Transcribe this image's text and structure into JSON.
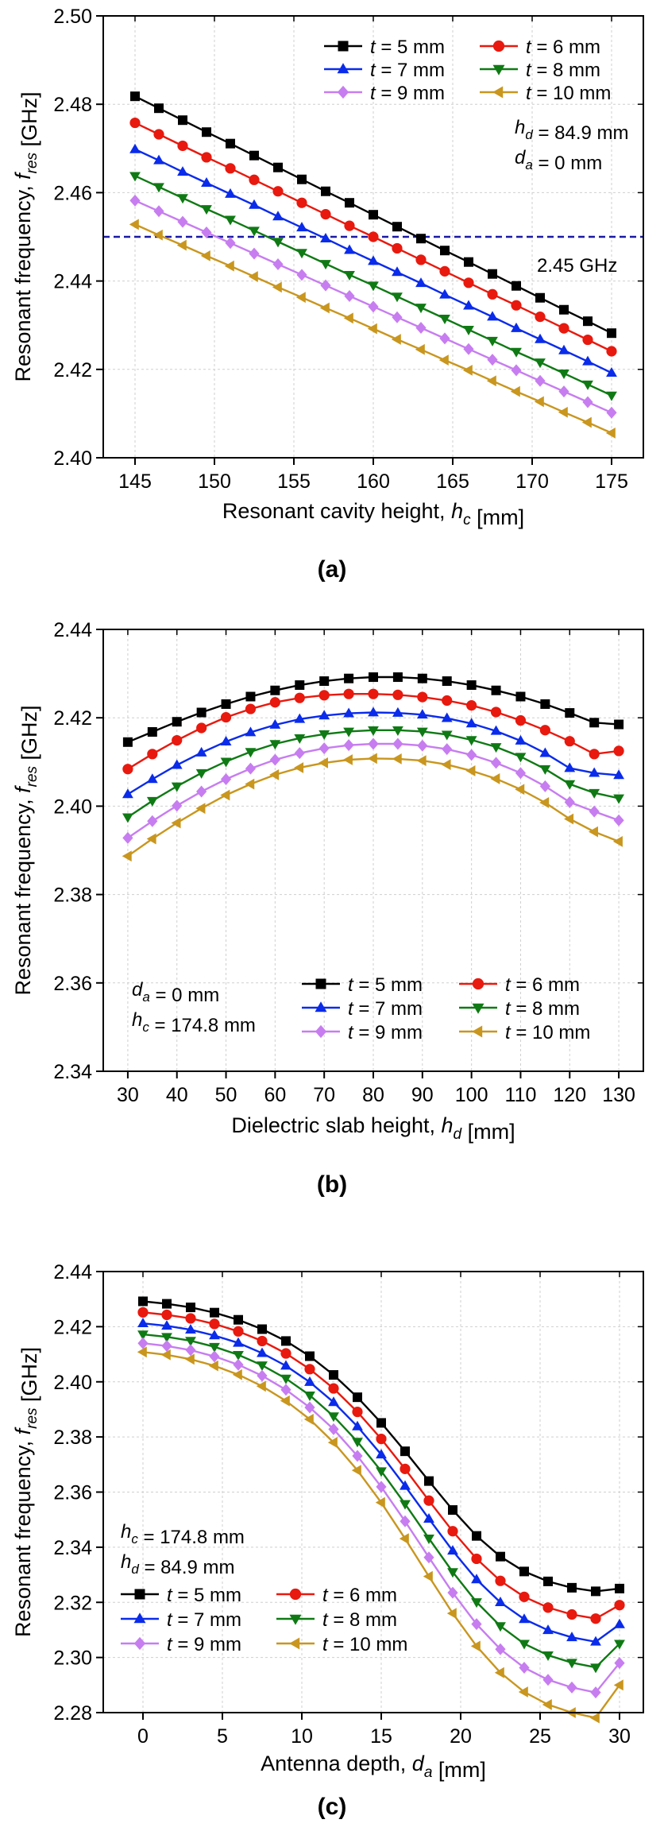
{
  "chart_data": [
    {
      "type": "line",
      "panel_label": "(a)",
      "ylabel": "Resonant frequency, f_res [GHz]",
      "xlabel": "Resonant cavity height, h_c [mm]",
      "xlim": [
        143,
        177
      ],
      "ylim": [
        2.4,
        2.5
      ],
      "xticks": [
        145,
        150,
        155,
        160,
        165,
        170,
        175
      ],
      "yticks": [
        2.4,
        2.42,
        2.44,
        2.46,
        2.48,
        2.5
      ],
      "grid": true,
      "legend_position": "top-right",
      "legend_columns": 2,
      "x": [
        145,
        146.5,
        148,
        149.5,
        151,
        152.5,
        154,
        155.5,
        157,
        158.5,
        160,
        161.5,
        163,
        164.5,
        166,
        167.5,
        169,
        170.5,
        172,
        173.5,
        175
      ],
      "series": [
        {
          "name": "t = 5 mm",
          "color": "#000000",
          "marker": "square",
          "values": [
            2.4818,
            2.4791,
            2.4764,
            2.4737,
            2.4711,
            2.4684,
            2.4657,
            2.463,
            2.4603,
            2.4577,
            2.455,
            2.4523,
            2.4496,
            2.4469,
            2.4443,
            2.4416,
            2.4389,
            2.4362,
            2.4335,
            2.4309,
            2.4282
          ]
        },
        {
          "name": "t = 6 mm",
          "color": "#e8190e",
          "marker": "circle",
          "values": [
            2.4758,
            2.4732,
            2.4706,
            2.468,
            2.4655,
            2.4629,
            2.4603,
            2.4577,
            2.4551,
            2.4525,
            2.45,
            2.4474,
            2.4448,
            2.4422,
            2.4396,
            2.437,
            2.4345,
            2.4319,
            2.4293,
            2.4267,
            2.4241
          ]
        },
        {
          "name": "t = 7 mm",
          "color": "#0a2bea",
          "marker": "triangle-up",
          "values": [
            2.4698,
            2.4673,
            2.4647,
            2.4622,
            2.4597,
            2.4572,
            2.4546,
            2.4521,
            2.4496,
            2.447,
            2.4445,
            2.442,
            2.4395,
            2.4369,
            2.4344,
            2.4319,
            2.4293,
            2.4268,
            2.4243,
            2.4218,
            2.4192
          ]
        },
        {
          "name": "t = 8 mm",
          "color": "#0f7a14",
          "marker": "triangle-down",
          "values": [
            2.4638,
            2.4613,
            2.4588,
            2.4563,
            2.4539,
            2.4514,
            2.4489,
            2.4464,
            2.4439,
            2.4414,
            2.439,
            2.4365,
            2.434,
            2.4315,
            2.429,
            2.4265,
            2.424,
            2.4216,
            2.4191,
            2.4166,
            2.4141
          ]
        },
        {
          "name": "t = 9 mm",
          "color": "#c77df0",
          "marker": "diamond",
          "values": [
            2.4582,
            2.4558,
            2.4534,
            2.451,
            2.4486,
            2.4462,
            2.4438,
            2.4414,
            2.439,
            2.4366,
            2.4342,
            2.4318,
            2.4294,
            2.427,
            2.4246,
            2.4222,
            2.4198,
            2.4174,
            2.415,
            2.4126,
            2.4102
          ]
        },
        {
          "name": "t = 10 mm",
          "color": "#c9961e",
          "marker": "triangle-left",
          "values": [
            2.4528,
            2.4504,
            2.4481,
            2.4457,
            2.4434,
            2.441,
            2.4386,
            2.4363,
            2.4339,
            2.4316,
            2.4292,
            2.4268,
            2.4245,
            2.4221,
            2.4198,
            2.4174,
            2.415,
            2.4127,
            2.4103,
            2.408,
            2.4056
          ]
        }
      ],
      "reference_line": {
        "y": 2.45,
        "label": "2.45 GHz",
        "color": "#1a1aa6"
      },
      "annotations": [
        "h_d = 84.9 mm",
        "d_a = 0 mm"
      ]
    },
    {
      "type": "line",
      "panel_label": "(b)",
      "ylabel": "Resonant frequency, f_res [GHz]",
      "xlabel": "Dielectric slab height, h_d [mm]",
      "xlim": [
        25,
        135
      ],
      "ylim": [
        2.34,
        2.44
      ],
      "xticks": [
        30,
        40,
        50,
        60,
        70,
        80,
        90,
        100,
        110,
        120,
        130
      ],
      "yticks": [
        2.34,
        2.36,
        2.38,
        2.4,
        2.42,
        2.44
      ],
      "grid": true,
      "legend_position": "bottom-right",
      "legend_columns": 2,
      "x": [
        30,
        35,
        40,
        45,
        50,
        55,
        60,
        65,
        70,
        75,
        80,
        85,
        90,
        95,
        100,
        105,
        110,
        115,
        120,
        125,
        130
      ],
      "series": [
        {
          "name": "t = 5 mm",
          "color": "#000000",
          "marker": "square",
          "values": [
            2.4145,
            2.4168,
            2.4191,
            2.4212,
            2.4231,
            2.4248,
            2.4262,
            2.4274,
            2.4283,
            2.4289,
            2.4292,
            2.4292,
            2.4289,
            2.4283,
            2.4274,
            2.4262,
            2.4248,
            2.4231,
            2.4211,
            2.4189,
            2.4185
          ]
        },
        {
          "name": "t = 6 mm",
          "color": "#e8190e",
          "marker": "circle",
          "values": [
            2.4084,
            2.4118,
            2.4149,
            2.4177,
            2.4201,
            2.422,
            2.4235,
            2.4245,
            2.4251,
            2.4254,
            2.4254,
            2.4252,
            2.4247,
            2.4239,
            2.4228,
            2.4213,
            2.4194,
            2.4172,
            2.4147,
            2.4118,
            2.4125
          ]
        },
        {
          "name": "t = 7 mm",
          "color": "#0a2bea",
          "marker": "triangle-up",
          "values": [
            2.4027,
            2.4061,
            2.4093,
            2.4121,
            2.4146,
            2.4167,
            2.4184,
            2.4197,
            2.4205,
            2.421,
            2.4212,
            2.4211,
            2.4207,
            2.4199,
            2.4187,
            2.417,
            2.4148,
            2.412,
            2.4086,
            2.4075,
            2.407
          ]
        },
        {
          "name": "t = 8 mm",
          "color": "#0f7a14",
          "marker": "triangle-down",
          "values": [
            2.3975,
            2.4012,
            2.4045,
            2.4075,
            2.4101,
            2.4123,
            2.4141,
            2.4154,
            2.4163,
            2.4169,
            2.4172,
            2.4172,
            2.4169,
            2.4162,
            2.415,
            2.4134,
            2.4112,
            2.4084,
            2.405,
            2.403,
            2.4018
          ]
        },
        {
          "name": "t = 9 mm",
          "color": "#c77df0",
          "marker": "diamond",
          "values": [
            2.3928,
            2.3966,
            2.4001,
            2.4033,
            2.4061,
            2.4085,
            2.4105,
            2.412,
            2.4131,
            2.4138,
            2.4141,
            2.4141,
            2.4137,
            2.4129,
            2.4116,
            2.4098,
            2.4075,
            2.4045,
            2.4009,
            2.3988,
            2.3968
          ]
        },
        {
          "name": "t = 10 mm",
          "color": "#c9961e",
          "marker": "triangle-left",
          "values": [
            2.3887,
            2.3926,
            2.3962,
            2.3995,
            2.4025,
            2.405,
            2.4071,
            2.4087,
            2.4098,
            2.4105,
            2.4108,
            2.4107,
            2.4103,
            2.4094,
            2.408,
            2.4062,
            2.4038,
            2.4008,
            2.3971,
            2.3942,
            2.392
          ]
        }
      ],
      "annotations": [
        "d_a = 0 mm",
        "h_c = 174.8 mm"
      ]
    },
    {
      "type": "line",
      "panel_label": "(c)",
      "ylabel": "Resonant frequency, f_res [GHz]",
      "xlabel": "Antenna depth, d_a [mm]",
      "xlim": [
        -2.5,
        31.5
      ],
      "ylim": [
        2.28,
        2.44
      ],
      "xticks": [
        0,
        5,
        10,
        15,
        20,
        25,
        30
      ],
      "yticks": [
        2.28,
        2.3,
        2.32,
        2.34,
        2.36,
        2.38,
        2.4,
        2.42,
        2.44
      ],
      "grid": true,
      "legend_position": "bottom-left",
      "legend_columns": 2,
      "x": [
        0,
        1.5,
        3,
        4.5,
        6,
        7.5,
        9,
        10.5,
        12,
        13.5,
        15,
        16.5,
        18,
        19.5,
        21,
        22.5,
        24,
        25.5,
        27,
        28.5,
        30
      ],
      "series": [
        {
          "name": "t = 5 mm",
          "color": "#000000",
          "marker": "square",
          "values": [
            2.4292,
            2.4283,
            2.427,
            2.4251,
            2.4225,
            2.4191,
            2.4148,
            2.4093,
            2.4025,
            2.3944,
            2.3851,
            2.3748,
            2.364,
            2.3535,
            2.3441,
            2.3366,
            2.3312,
            2.3276,
            2.3253,
            2.324,
            2.325
          ]
        },
        {
          "name": "t = 6 mm",
          "color": "#e8190e",
          "marker": "circle",
          "values": [
            2.4252,
            2.4243,
            2.423,
            2.421,
            2.4183,
            2.4148,
            2.4103,
            2.4046,
            2.3976,
            2.3891,
            2.3793,
            2.3684,
            2.3569,
            2.3458,
            2.3358,
            2.3278,
            2.322,
            2.3181,
            2.3156,
            2.3141,
            2.319
          ]
        },
        {
          "name": "t = 7 mm",
          "color": "#0a2bea",
          "marker": "triangle-up",
          "values": [
            2.4212,
            2.4203,
            2.4189,
            2.4168,
            2.4141,
            2.4104,
            2.4058,
            2.3999,
            2.3926,
            2.3838,
            2.3736,
            2.3622,
            2.3503,
            2.3387,
            2.3283,
            2.32,
            2.3139,
            2.3099,
            2.3073,
            2.3057,
            2.312
          ]
        },
        {
          "name": "t = 8 mm",
          "color": "#0f7a14",
          "marker": "triangle-down",
          "values": [
            2.4172,
            2.4163,
            2.4149,
            2.4127,
            2.4098,
            2.406,
            2.4012,
            2.3951,
            2.3875,
            2.3783,
            2.3676,
            2.3557,
            2.3432,
            2.331,
            2.3201,
            2.3114,
            2.305,
            2.3008,
            2.2981,
            2.2964,
            2.305
          ]
        },
        {
          "name": "t = 9 mm",
          "color": "#c77df0",
          "marker": "diamond",
          "values": [
            2.414,
            2.413,
            2.4115,
            2.4092,
            2.4062,
            2.4022,
            2.3971,
            2.3907,
            2.3828,
            2.3731,
            2.3619,
            2.3494,
            2.3363,
            2.3235,
            2.3121,
            2.303,
            2.2963,
            2.2919,
            2.2891,
            2.2873,
            2.298
          ]
        },
        {
          "name": "t = 10 mm",
          "color": "#c9961e",
          "marker": "triangle-left",
          "values": [
            2.4108,
            2.4098,
            2.4082,
            2.4058,
            2.4026,
            2.3984,
            2.3931,
            2.3864,
            2.378,
            2.3679,
            2.3562,
            2.3431,
            2.3294,
            2.316,
            2.3041,
            2.2945,
            2.2875,
            2.2829,
            2.28,
            2.2781,
            2.29
          ]
        }
      ],
      "annotations": [
        "h_c = 174.8 mm",
        "h_d = 84.9 mm"
      ]
    }
  ]
}
